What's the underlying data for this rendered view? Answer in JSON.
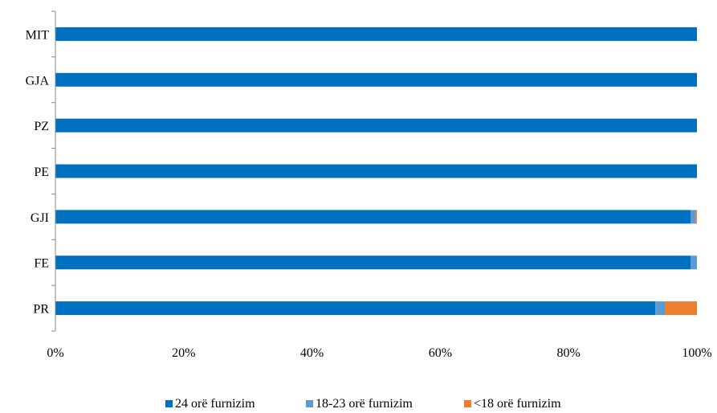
{
  "chart_data": {
    "type": "bar",
    "orientation": "horizontal",
    "stacked": true,
    "percent_stacked": true,
    "categories": [
      "MIT",
      "GJA",
      "PZ",
      "PE",
      "GJI",
      "FE",
      "PR"
    ],
    "series": [
      {
        "name": "24 orë furnizim",
        "color": "#0070C0",
        "values": [
          100,
          100,
          100,
          100,
          99.0,
          99.0,
          93.5
        ]
      },
      {
        "name": "18-23 orë furnizim",
        "color": "#5B9BD5",
        "values": [
          0,
          0,
          0,
          0,
          0.8,
          1.0,
          1.5
        ]
      },
      {
        "name": "<18 orë furnizim",
        "color": "#ED7D31",
        "values": [
          0,
          0,
          0,
          0,
          0.2,
          0,
          5.0
        ]
      }
    ],
    "xlim": [
      0,
      100
    ],
    "xticks": [
      0,
      20,
      40,
      60,
      80,
      100
    ],
    "xtick_labels": [
      "0%",
      "20%",
      "40%",
      "60%",
      "80%",
      "100%"
    ],
    "grid": false,
    "legend_position": "bottom"
  }
}
